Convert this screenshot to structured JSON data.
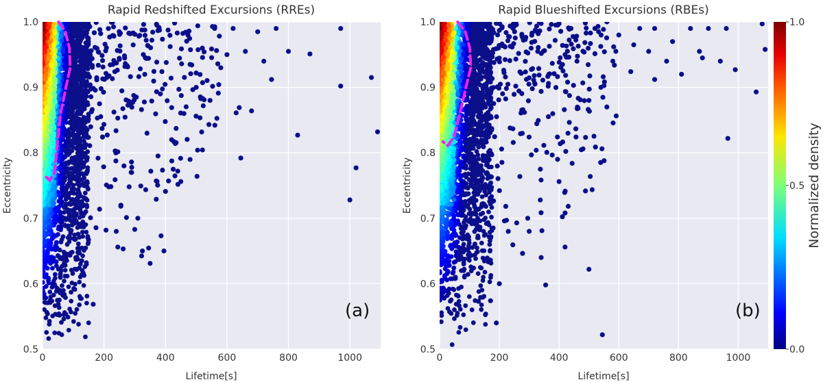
{
  "chart_data": [
    {
      "type": "scatter",
      "title": "Rapid Redshifted Excursions (RREs)",
      "xlabel": "Lifetime[s]",
      "ylabel": "Eccentricity",
      "panel_label": "(a)",
      "xlim": [
        0,
        1100
      ],
      "ylim": [
        0.5,
        1.0
      ],
      "xticks": [
        "0",
        "200",
        "400",
        "600",
        "800",
        "1000"
      ],
      "yticks": [
        "0.5",
        "0.6",
        "0.7",
        "0.8",
        "0.9",
        "1.0"
      ],
      "grid": true,
      "background": "#e9e9f2",
      "contour_lifetime_max": 95,
      "contour_eccentricity_min": 0.76,
      "dense_core": {
        "lifetime_max": 120,
        "eccentricity_min": 0.5
      },
      "outliers": [
        [
          970,
          0.99
        ],
        [
          1070,
          0.915
        ],
        [
          1090,
          0.832
        ],
        [
          970,
          0.902
        ],
        [
          1000,
          0.728
        ],
        [
          1020,
          0.777
        ],
        [
          830,
          0.827
        ],
        [
          870,
          0.951
        ],
        [
          745,
          0.912
        ],
        [
          680,
          0.864
        ],
        [
          640,
          0.869
        ],
        [
          630,
          0.861
        ],
        [
          645,
          0.792
        ],
        [
          580,
          0.93
        ],
        [
          545,
          0.88
        ],
        [
          600,
          0.95
        ],
        [
          660,
          0.955
        ],
        [
          700,
          0.985
        ],
        [
          560,
          0.99
        ],
        [
          480,
          0.935
        ],
        [
          440,
          0.772
        ],
        [
          450,
          0.756
        ],
        [
          410,
          0.757
        ],
        [
          400,
          0.741
        ],
        [
          370,
          0.729
        ],
        [
          370,
          0.757
        ],
        [
          395,
          0.65
        ],
        [
          325,
          0.65
        ],
        [
          350,
          0.631
        ],
        [
          300,
          0.683
        ],
        [
          245,
          0.656
        ],
        [
          255,
          0.72
        ],
        [
          240,
          0.68
        ],
        [
          310,
          0.7
        ],
        [
          265,
          0.78
        ],
        [
          290,
          0.77
        ],
        [
          500,
          0.9
        ],
        [
          520,
          0.96
        ],
        [
          620,
          0.99
        ],
        [
          760,
          0.99
        ],
        [
          800,
          0.955
        ],
        [
          720,
          0.94
        ],
        [
          460,
          0.86
        ],
        [
          420,
          0.82
        ],
        [
          340,
          0.83
        ]
      ]
    },
    {
      "type": "scatter",
      "title": "Rapid Blueshifted Excursions (RBEs)",
      "xlabel": "Lifetime[s]",
      "ylabel": "Eccentricity",
      "panel_label": "(b)",
      "xlim": [
        0,
        1100
      ],
      "ylim": [
        0.5,
        1.0
      ],
      "xticks": [
        "0",
        "200",
        "400",
        "600",
        "800",
        "1000"
      ],
      "yticks": [
        "0.5",
        "0.6",
        "0.7",
        "0.8",
        "0.9",
        "1.0"
      ],
      "grid": true,
      "background": "#e9e9f2",
      "contour_lifetime_max": 110,
      "contour_eccentricity_min": 0.813,
      "dense_core": {
        "lifetime_max": 140,
        "eccentricity_min": 0.5
      },
      "outliers": [
        [
          1090,
          0.958
        ],
        [
          1080,
          0.997
        ],
        [
          960,
          0.99
        ],
        [
          1060,
          0.893
        ],
        [
          990,
          0.927
        ],
        [
          965,
          0.822
        ],
        [
          940,
          0.94
        ],
        [
          880,
          0.945
        ],
        [
          810,
          0.92
        ],
        [
          870,
          0.955
        ],
        [
          760,
          0.94
        ],
        [
          720,
          0.912
        ],
        [
          700,
          0.955
        ],
        [
          640,
          0.924
        ],
        [
          650,
          0.965
        ],
        [
          600,
          0.98
        ],
        [
          545,
          0.522
        ],
        [
          500,
          0.622
        ],
        [
          420,
          0.656
        ],
        [
          420,
          0.708
        ],
        [
          480,
          0.806
        ],
        [
          395,
          0.79
        ],
        [
          400,
          0.756
        ],
        [
          355,
          0.598
        ],
        [
          340,
          0.64
        ],
        [
          295,
          0.7
        ],
        [
          300,
          0.68
        ],
        [
          190,
          0.54
        ],
        [
          130,
          0.573
        ],
        [
          200,
          0.6
        ],
        [
          230,
          0.68
        ],
        [
          560,
          0.87
        ],
        [
          540,
          0.9
        ],
        [
          500,
          0.88
        ],
        [
          580,
          0.94
        ],
        [
          460,
          0.94
        ],
        [
          420,
          0.95
        ],
        [
          440,
          0.99
        ],
        [
          520,
          0.99
        ],
        [
          560,
          1.0
        ],
        [
          670,
          0.99
        ],
        [
          840,
          0.99
        ],
        [
          900,
          0.99
        ],
        [
          720,
          0.99
        ],
        [
          780,
          0.97
        ]
      ]
    }
  ],
  "colorbar": {
    "label": "Normalized density",
    "ticks": [
      "0.0",
      "0.5",
      "1.0"
    ],
    "range": [
      0.0,
      1.0
    ],
    "colormap": "jet"
  },
  "colors": {
    "outlier": "#0b0f8a",
    "contour": "#ee22ee",
    "grid": "#ffffff"
  }
}
